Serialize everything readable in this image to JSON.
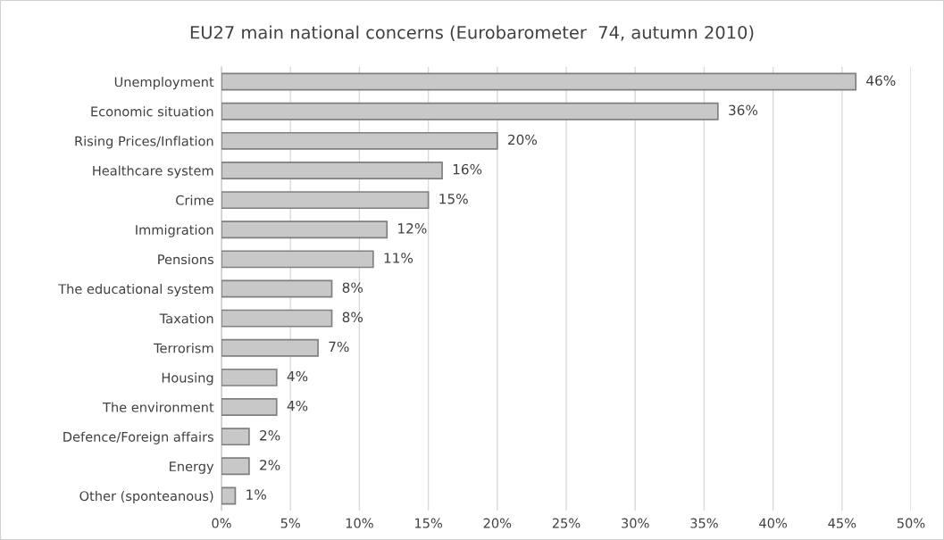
{
  "chart_data": {
    "type": "bar",
    "orientation": "horizontal",
    "title": "EU27 main national concerns (Eurobarometer  74, autumn 2010)",
    "categories": [
      "Unemployment",
      "Economic situation",
      "Rising Prices/Inflation",
      "Healthcare system",
      "Crime",
      "Immigration",
      "Pensions",
      "The educational system",
      "Taxation",
      "Terrorism",
      "Housing",
      "The environment",
      "Defence/Foreign affairs",
      "Energy",
      "Other (sponteanous)"
    ],
    "values": [
      46,
      36,
      20,
      16,
      15,
      12,
      11,
      8,
      8,
      7,
      4,
      4,
      2,
      2,
      1
    ],
    "value_labels": [
      "46%",
      "36%",
      "20%",
      "16%",
      "15%",
      "12%",
      "11%",
      "8%",
      "8%",
      "7%",
      "4%",
      "4%",
      "2%",
      "2%",
      "1%"
    ],
    "color": "#c8c8c8",
    "xlim": [
      0,
      50
    ],
    "xticks": [
      {
        "value": 0,
        "label": "0%"
      },
      {
        "value": 5,
        "label": "5%"
      },
      {
        "value": 10,
        "label": "10%"
      },
      {
        "value": 15,
        "label": "15%"
      },
      {
        "value": 20,
        "label": "20%"
      },
      {
        "value": 25,
        "label": "25%"
      },
      {
        "value": 30,
        "label": "30%"
      },
      {
        "value": 35,
        "label": "35%"
      },
      {
        "value": 40,
        "label": "40%"
      },
      {
        "value": 45,
        "label": "45%"
      },
      {
        "value": 50,
        "label": "50%"
      }
    ],
    "grid": "x",
    "legend": false
  }
}
